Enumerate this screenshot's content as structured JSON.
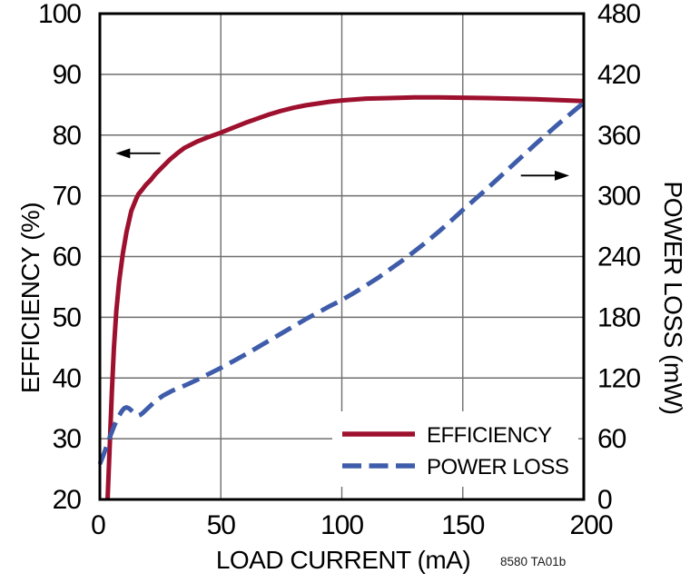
{
  "chart_data": {
    "type": "line",
    "title": "",
    "note": "8580 TA01b",
    "background": "#ffffff",
    "grid": true,
    "grid_color": "#6e6e6e",
    "frame_color": "#000000",
    "x_axis": {
      "label": "LOAD CURRENT (mA)",
      "min": 0,
      "max": 200,
      "ticks": [
        0,
        50,
        100,
        150,
        200
      ]
    },
    "y_left": {
      "label": "EFFICIENCY (%)",
      "min": 20,
      "max": 100,
      "ticks": [
        100,
        90,
        80,
        70,
        60,
        50,
        40,
        30,
        20
      ]
    },
    "y_right": {
      "label": "POWER LOSS (mW)",
      "min": 0,
      "max": 480,
      "ticks": [
        480,
        420,
        360,
        300,
        240,
        180,
        120,
        60,
        0
      ]
    },
    "legend": {
      "position": "bottom-right",
      "items": [
        "EFFICIENCY",
        "POWER LOSS"
      ]
    },
    "series": [
      {
        "name": "EFFICIENCY",
        "axis": "left",
        "color": "#9d102e",
        "style": "solid",
        "points": [
          [
            3.2,
            20
          ],
          [
            3.8,
            26
          ],
          [
            4.4,
            32
          ],
          [
            5,
            38
          ],
          [
            5.8,
            45
          ],
          [
            6.8,
            51
          ],
          [
            8,
            56
          ],
          [
            9.5,
            60.5
          ],
          [
            11,
            64
          ],
          [
            13,
            67.5
          ],
          [
            15,
            69.5
          ],
          [
            16,
            70.3
          ],
          [
            17.5,
            71
          ],
          [
            19,
            71.8
          ],
          [
            21,
            72.6
          ],
          [
            23,
            73.6
          ],
          [
            26,
            74.8
          ],
          [
            29,
            76
          ],
          [
            32,
            77
          ],
          [
            35,
            77.9
          ],
          [
            40,
            78.9
          ],
          [
            45,
            79.7
          ],
          [
            50,
            80.4
          ],
          [
            55,
            81.2
          ],
          [
            60,
            82
          ],
          [
            65,
            82.7
          ],
          [
            70,
            83.4
          ],
          [
            75,
            84
          ],
          [
            80,
            84.5
          ],
          [
            85,
            84.9
          ],
          [
            90,
            85.2
          ],
          [
            95,
            85.5
          ],
          [
            100,
            85.7
          ],
          [
            105,
            85.85
          ],
          [
            110,
            86
          ],
          [
            120,
            86.1
          ],
          [
            130,
            86.2
          ],
          [
            140,
            86.2
          ],
          [
            150,
            86.15
          ],
          [
            160,
            86.1
          ],
          [
            170,
            86
          ],
          [
            180,
            85.9
          ],
          [
            190,
            85.75
          ],
          [
            200,
            85.6
          ]
        ]
      },
      {
        "name": "POWER LOSS",
        "axis": "right",
        "color": "#3e5caa",
        "style": "dashed",
        "points": [
          [
            0,
            35
          ],
          [
            1.5,
            44
          ],
          [
            3,
            54
          ],
          [
            4.5,
            64
          ],
          [
            6,
            73
          ],
          [
            7.5,
            81
          ],
          [
            9,
            87
          ],
          [
            10,
            90
          ],
          [
            11,
            91
          ],
          [
            12,
            90
          ],
          [
            13,
            88
          ],
          [
            14,
            85.5
          ],
          [
            15,
            83.5
          ],
          [
            16,
            83
          ],
          [
            17,
            84
          ],
          [
            18,
            86
          ],
          [
            20,
            90.5
          ],
          [
            22,
            95
          ],
          [
            24,
            99
          ],
          [
            26,
            102.5
          ],
          [
            28,
            105
          ],
          [
            30,
            107.5
          ],
          [
            33,
            110.5
          ],
          [
            36,
            113.5
          ],
          [
            40,
            118
          ],
          [
            45,
            124
          ],
          [
            50,
            130
          ],
          [
            55,
            136.5
          ],
          [
            60,
            143
          ],
          [
            65,
            150
          ],
          [
            70,
            157
          ],
          [
            75,
            164
          ],
          [
            80,
            171
          ],
          [
            85,
            178
          ],
          [
            90,
            184.5
          ],
          [
            95,
            191
          ],
          [
            100,
            197
          ],
          [
            105,
            204
          ],
          [
            110,
            211.5
          ],
          [
            115,
            219
          ],
          [
            120,
            227.5
          ],
          [
            125,
            236
          ],
          [
            130,
            245
          ],
          [
            135,
            254.5
          ],
          [
            140,
            264.5
          ],
          [
            145,
            275
          ],
          [
            150,
            286
          ],
          [
            155,
            296.5
          ],
          [
            160,
            307
          ],
          [
            165,
            318
          ],
          [
            170,
            329
          ],
          [
            175,
            340
          ],
          [
            180,
            351
          ],
          [
            185,
            361.5
          ],
          [
            190,
            372
          ],
          [
            195,
            382
          ],
          [
            200,
            392
          ]
        ]
      }
    ],
    "annotations": [
      {
        "type": "arrow",
        "direction": "left",
        "axis": "left",
        "y": 77,
        "x_tail": 25,
        "x_tip": 6.5
      },
      {
        "type": "arrow",
        "direction": "right",
        "axis": "right",
        "y": 320,
        "x_tail": 174,
        "x_tip": 194
      }
    ]
  }
}
